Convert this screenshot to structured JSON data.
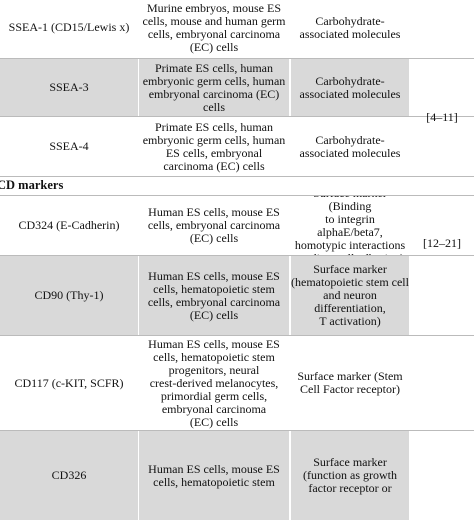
{
  "table": {
    "groups": [
      {
        "rows": [
          {
            "marker": "SSEA-1 (CD15/Lewis x)",
            "cells": [
              "Murine embryos, mouse ES",
              "cells, mouse and human germ",
              "cells, embryonal carcinoma",
              "(EC) cells"
            ],
            "function": [
              "Carbohydrate-",
              "associated molecules"
            ]
          },
          {
            "marker": "SSEA-3",
            "cells": [
              "Primate ES cells, human",
              "embryonic germ cells, human",
              "embryonal carcinoma (EC) cells"
            ],
            "function": [
              "Carbohydrate-",
              "associated molecules"
            ]
          },
          {
            "marker": "SSEA-4",
            "cells": [
              "Primate ES cells, human",
              "embryonic germ cells, human",
              "ES cells, embryonal",
              "carcinoma (EC) cells"
            ],
            "function": [
              "Carbohydrate-",
              "associated molecules"
            ]
          }
        ],
        "refs": "[4–11]"
      },
      {
        "title": "CD markers",
        "rows": [
          {
            "marker": "CD324 (E-Cadherin)",
            "cells": [
              "Human ES cells, mouse ES",
              "cells, embryonal carcinoma",
              "(EC) cells"
            ],
            "function": [
              "Surface marker (Binding",
              "to integrin alphaE/beta7,",
              "homotypic interactions",
              "mediate cell adhesion)"
            ]
          },
          {
            "marker": "CD90 (Thy-1)",
            "cells": [
              "Human ES cells, mouse ES",
              "cells, hematopoietic stem",
              "cells, embryonal carcinoma",
              "(EC) cells"
            ],
            "function": [
              "Surface marker",
              "(hematopoietic stem cell",
              "and neuron",
              "differentiation,",
              "T activation)"
            ]
          },
          {
            "marker": "CD117 (c-KIT, SCFR)",
            "cells": [
              "Human ES cells, mouse ES",
              "cells, hematopoietic stem",
              "progenitors, neural",
              "crest-derived melanocytes,",
              "primordial germ cells,",
              "embryonal carcinoma",
              "(EC) cells"
            ],
            "function": [
              "Surface marker (Stem",
              "Cell Factor receptor)"
            ]
          },
          {
            "marker": "CD326",
            "cells": [
              "Human ES cells, mouse ES",
              "cells, hematopoietic stem"
            ],
            "function": [
              "Surface marker",
              "(function as growth",
              "factor receptor or"
            ]
          }
        ],
        "refs": "[12–21]"
      }
    ]
  }
}
